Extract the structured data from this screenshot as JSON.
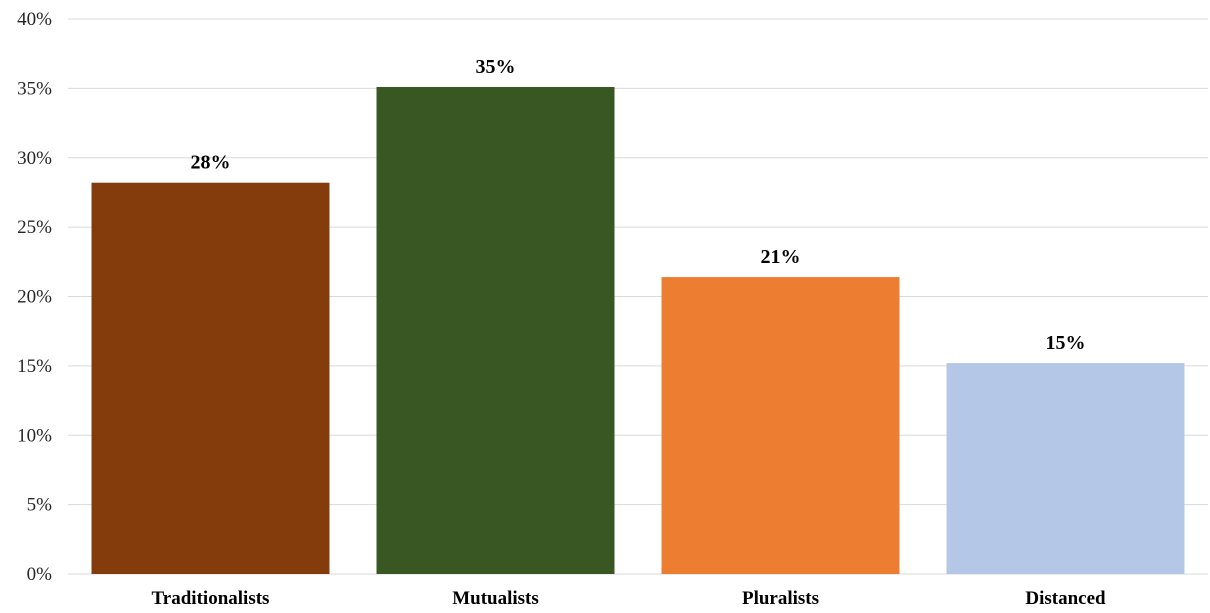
{
  "chart_data": {
    "type": "bar",
    "title": "",
    "xlabel": "",
    "ylabel": "",
    "categories": [
      "Traditionalists",
      "Mutualists",
      "Pluralists",
      "Distanced"
    ],
    "values": [
      28.2,
      35.1,
      21.4,
      15.2
    ],
    "data_labels": [
      "28%",
      "35%",
      "21%",
      "15%"
    ],
    "colors": [
      "#843c0c",
      "#385723",
      "#ed7d31",
      "#b4c7e7"
    ],
    "ylim": [
      0,
      40
    ],
    "yticks": [
      0,
      5,
      10,
      15,
      20,
      25,
      30,
      35,
      40
    ],
    "ytick_labels": [
      "0%",
      "5%",
      "10%",
      "15%",
      "20%",
      "25%",
      "30%",
      "35%",
      "40%"
    ],
    "grid": true,
    "legend": "none"
  }
}
